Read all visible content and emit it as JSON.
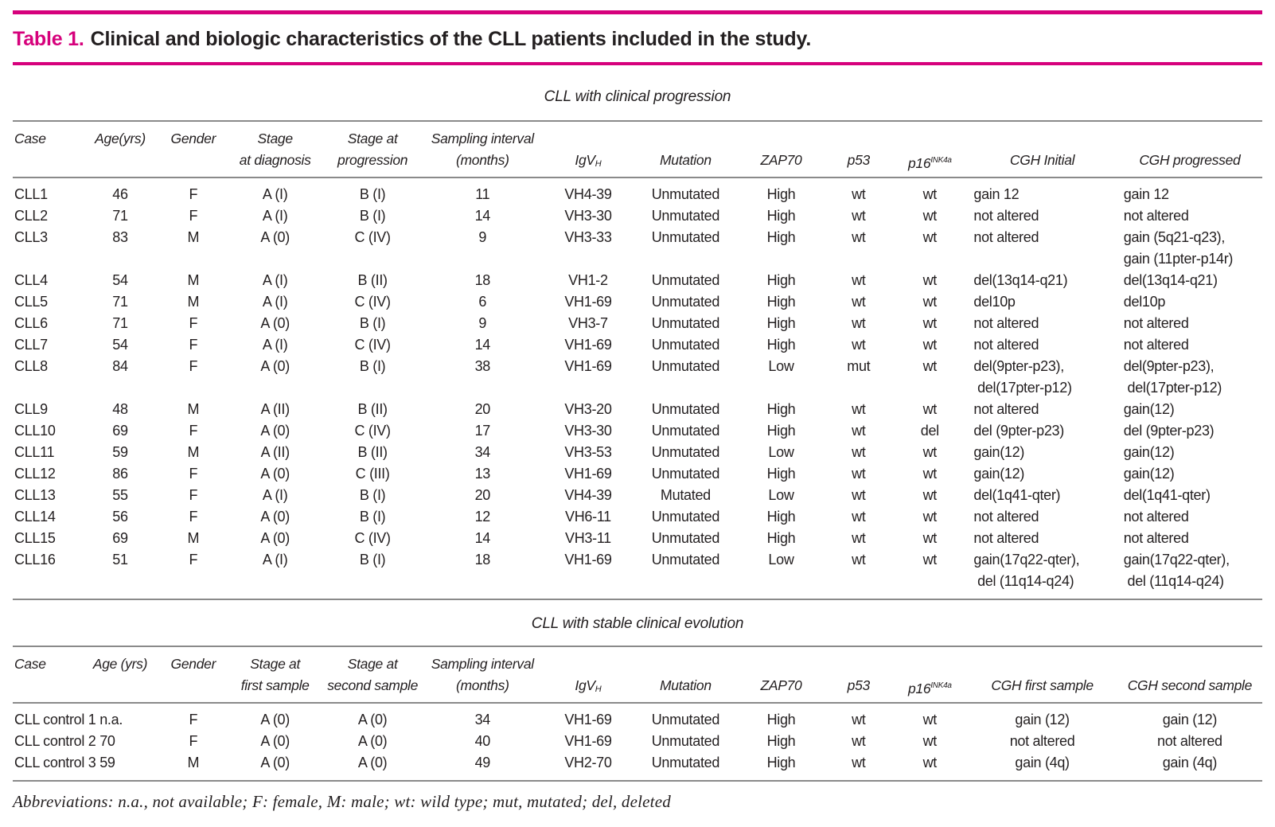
{
  "title": {
    "label": "Table 1.",
    "text": "Clinical and biologic characteristics of the CLL patients included in the study."
  },
  "colors": {
    "accent": "#d6017c",
    "rule": "#8a8a8a",
    "text": "#231f20"
  },
  "column_widths_pct": [
    5.5,
    6.2,
    5.5,
    7.6,
    8.0,
    9.6,
    7.3,
    8.3,
    7.0,
    5.4,
    6.0,
    12.0,
    11.6
  ],
  "sections": [
    {
      "heading": "CLL with clinical progression",
      "columns": [
        {
          "l1": "Case",
          "l2": "",
          "align": "left"
        },
        {
          "l1": "Age(yrs)",
          "l2": "",
          "align": "center"
        },
        {
          "l1": "Gender",
          "l2": "",
          "align": "center"
        },
        {
          "l1": "Stage",
          "l2": "at diagnosis",
          "align": "center"
        },
        {
          "l1": "Stage at",
          "l2": "progression",
          "align": "center"
        },
        {
          "l1": "Sampling interval",
          "l2": "(months)",
          "align": "center"
        },
        {
          "l1": "",
          "l2": "IgV~H~",
          "align": "center"
        },
        {
          "l1": "",
          "l2": "Mutation",
          "align": "center"
        },
        {
          "l1": "",
          "l2": "ZAP70",
          "align": "center"
        },
        {
          "l1": "",
          "l2": "p53",
          "align": "center"
        },
        {
          "l1": "",
          "l2": "p16^INK4a^",
          "align": "center"
        },
        {
          "l1": "",
          "l2": "CGH Initial",
          "align": "left"
        },
        {
          "l1": "",
          "l2": "CGH progressed",
          "align": "left"
        }
      ],
      "rows": [
        [
          "CLL1",
          "46",
          "F",
          "A (I)",
          "B (I)",
          "11",
          "VH4-39",
          "Unmutated",
          "High",
          "wt",
          "wt",
          "gain 12",
          "gain 12"
        ],
        [
          "CLL2",
          "71",
          "F",
          "A (I)",
          "B (I)",
          "14",
          "VH3-30",
          "Unmutated",
          "High",
          "wt",
          "wt",
          "not altered",
          "not altered"
        ],
        [
          "CLL3",
          "83",
          "M",
          "A (0)",
          "C (IV)",
          "9",
          "VH3-33",
          "Unmutated",
          "High",
          "wt",
          "wt",
          "not altered",
          "gain (5q21-q23),\ngain (11pter-p14r)"
        ],
        [
          "CLL4",
          "54",
          "M",
          "A (I)",
          "B (II)",
          "18",
          "VH1-2",
          "Unmutated",
          "High",
          "wt",
          "wt",
          "del(13q14-q21)",
          "del(13q14-q21)"
        ],
        [
          "CLL5",
          "71",
          "M",
          "A (I)",
          "C (IV)",
          "6",
          "VH1-69",
          "Unmutated",
          "High",
          "wt",
          "wt",
          "del10p",
          "del10p"
        ],
        [
          "CLL6",
          "71",
          "F",
          "A (0)",
          "B (I)",
          "9",
          "VH3-7",
          "Unmutated",
          "High",
          "wt",
          "wt",
          "not altered",
          "not altered"
        ],
        [
          "CLL7",
          "54",
          "F",
          "A (I)",
          "C (IV)",
          "14",
          "VH1-69",
          "Unmutated",
          "High",
          "wt",
          "wt",
          "not altered",
          "not altered"
        ],
        [
          "CLL8",
          "84",
          "F",
          "A (0)",
          "B (I)",
          "38",
          "VH1-69",
          "Unmutated",
          "Low",
          "mut",
          "wt",
          "del(9pter-p23),\n del(17pter-p12)",
          "del(9pter-p23),\n del(17pter-p12)"
        ],
        [
          "CLL9",
          "48",
          "M",
          "A (II)",
          "B (II)",
          "20",
          "VH3-20",
          "Unmutated",
          "High",
          "wt",
          "wt",
          "not altered",
          "gain(12)"
        ],
        [
          "CLL10",
          "69",
          "F",
          "A (0)",
          "C (IV)",
          "17",
          "VH3-30",
          "Unmutated",
          "High",
          "wt",
          "del",
          "del (9pter-p23)",
          "del (9pter-p23)"
        ],
        [
          "CLL11",
          "59",
          "M",
          "A (II)",
          "B (II)",
          "34",
          "VH3-53",
          "Unmutated",
          "Low",
          "wt",
          "wt",
          "gain(12)",
          "gain(12)"
        ],
        [
          "CLL12",
          "86",
          "F",
          "A (0)",
          "C (III)",
          "13",
          "VH1-69",
          "Unmutated",
          "High",
          "wt",
          "wt",
          "gain(12)",
          "gain(12)"
        ],
        [
          "CLL13",
          "55",
          "F",
          "A (I)",
          "B (I)",
          "20",
          "VH4-39",
          "Mutated",
          "Low",
          "wt",
          "wt",
          "del(1q41-qter)",
          "del(1q41-qter)"
        ],
        [
          "CLL14",
          "56",
          "F",
          "A (0)",
          "B (I)",
          "12",
          "VH6-11",
          "Unmutated",
          "High",
          "wt",
          "wt",
          "not altered",
          "not altered"
        ],
        [
          "CLL15",
          "69",
          "M",
          "A (0)",
          "C (IV)",
          "14",
          "VH3-11",
          "Unmutated",
          "High",
          "wt",
          "wt",
          "not altered",
          "not altered"
        ],
        [
          "CLL16",
          "51",
          "F",
          "A (I)",
          "B (I)",
          "18",
          "VH1-69",
          "Unmutated",
          "Low",
          "wt",
          "wt",
          "gain(17q22-qter),\n del (11q14-q24)",
          "gain(17q22-qter),\n del (11q14-q24)"
        ]
      ]
    },
    {
      "heading": "CLL with stable clinical evolution",
      "case_colspan": 2,
      "columns": [
        {
          "l1": "Case",
          "l2": "",
          "align": "left"
        },
        {
          "l1": "Age (yrs)",
          "l2": "",
          "align": "center"
        },
        {
          "l1": "Gender",
          "l2": "",
          "align": "center"
        },
        {
          "l1": "Stage at",
          "l2": "first sample",
          "align": "center"
        },
        {
          "l1": "Stage at",
          "l2": "second sample",
          "align": "center"
        },
        {
          "l1": "Sampling interval",
          "l2": "(months)",
          "align": "center"
        },
        {
          "l1": "",
          "l2": "IgV~H~",
          "align": "center"
        },
        {
          "l1": "",
          "l2": "Mutation",
          "align": "center"
        },
        {
          "l1": "",
          "l2": "ZAP70",
          "align": "center"
        },
        {
          "l1": "",
          "l2": "p53",
          "align": "center"
        },
        {
          "l1": "",
          "l2": "p16^INK4a^",
          "align": "center"
        },
        {
          "l1": "",
          "l2": "CGH first sample",
          "align": "center"
        },
        {
          "l1": "",
          "l2": "CGH second sample",
          "align": "center"
        }
      ],
      "rows": [
        [
          "CLL control 1 n.a.",
          "F",
          "A (0)",
          "A (0)",
          "34",
          "VH1-69",
          "Unmutated",
          "High",
          "wt",
          "wt",
          "gain (12)",
          "gain (12)"
        ],
        [
          "CLL control 2 70",
          "F",
          "A (0)",
          "A (0)",
          "40",
          "VH1-69",
          "Unmutated",
          "High",
          "wt",
          "wt",
          "not altered",
          "not altered"
        ],
        [
          "CLL control 3 59",
          "M",
          "A (0)",
          "A (0)",
          "49",
          "VH2-70",
          "Unmutated",
          "High",
          "wt",
          "wt",
          "gain (4q)",
          "gain (4q)"
        ]
      ]
    }
  ],
  "footer": "Abbreviations: n.a., not available; F: female, M: male; wt: wild type; mut, mutated; del, deleted"
}
